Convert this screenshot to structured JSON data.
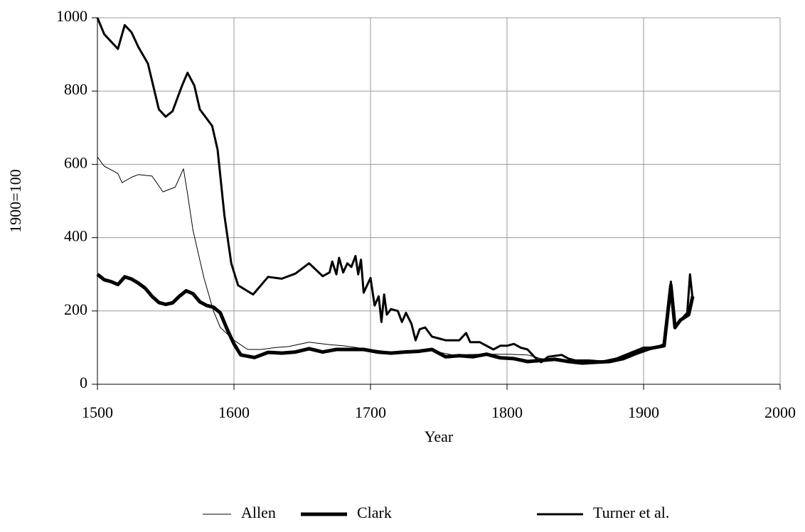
{
  "chart_data": {
    "type": "line",
    "x_label": "Year",
    "y_label": "1900=100",
    "xlim": [
      1500,
      2000
    ],
    "xticks": [
      1500,
      1600,
      1700,
      1800,
      1900,
      2000
    ],
    "ylim": [
      0,
      1000
    ],
    "yticks": [
      0,
      200,
      400,
      600,
      800,
      1000
    ],
    "grid": true,
    "legend": "bottom",
    "series": [
      {
        "name": "Allen",
        "color": "#000000",
        "width": 1,
        "x": [
          1500,
          1505,
          1510,
          1515,
          1518,
          1525,
          1530,
          1540,
          1548,
          1557,
          1563,
          1566,
          1570,
          1578,
          1585,
          1590,
          1600,
          1610,
          1620,
          1630,
          1640,
          1655,
          1670,
          1680,
          1690,
          1700,
          1720,
          1740,
          1760,
          1780,
          1800,
          1815,
          1825,
          1840,
          1855,
          1870,
          1885,
          1900,
          1915,
          1920,
          1923,
          1930,
          1936
        ],
        "values": [
          620,
          595,
          585,
          575,
          550,
          565,
          572,
          568,
          525,
          538,
          588,
          520,
          420,
          290,
          200,
          155,
          120,
          95,
          95,
          100,
          103,
          115,
          108,
          105,
          100,
          95,
          85,
          95,
          80,
          82,
          82,
          80,
          70,
          65,
          60,
          62,
          72,
          100,
          105,
          240,
          150,
          185,
          225
        ]
      },
      {
        "name": "Clark",
        "color": "#000000",
        "width": 5,
        "x": [
          1500,
          1505,
          1510,
          1515,
          1520,
          1525,
          1530,
          1535,
          1540,
          1545,
          1550,
          1555,
          1560,
          1565,
          1570,
          1575,
          1580,
          1585,
          1590,
          1595,
          1600,
          1605,
          1615,
          1625,
          1635,
          1645,
          1655,
          1665,
          1675,
          1685,
          1695,
          1705,
          1715,
          1725,
          1735,
          1745,
          1755,
          1765,
          1775,
          1785,
          1795,
          1805,
          1815,
          1825,
          1835,
          1845,
          1855,
          1865,
          1875,
          1885,
          1895,
          1905,
          1915,
          1920,
          1923,
          1927,
          1933,
          1936
        ],
        "values": [
          300,
          285,
          280,
          272,
          293,
          287,
          276,
          262,
          240,
          223,
          218,
          222,
          240,
          255,
          247,
          225,
          215,
          210,
          195,
          150,
          110,
          80,
          73,
          87,
          85,
          88,
          97,
          88,
          95,
          95,
          95,
          88,
          85,
          88,
          90,
          95,
          75,
          78,
          75,
          82,
          72,
          70,
          62,
          65,
          68,
          62,
          58,
          60,
          62,
          70,
          85,
          98,
          105,
          270,
          155,
          175,
          190,
          240
        ]
      },
      {
        "name": "Turner et al.",
        "color": "#000000",
        "width": 3,
        "x": [
          1500,
          1505,
          1515,
          1520,
          1525,
          1530,
          1537,
          1545,
          1550,
          1555,
          1562,
          1566,
          1571,
          1575,
          1584,
          1588,
          1593,
          1598,
          1603,
          1614,
          1625,
          1635,
          1645,
          1655,
          1665,
          1670,
          1672,
          1675,
          1677,
          1680,
          1683,
          1686,
          1689,
          1691,
          1693,
          1695,
          1700,
          1703,
          1706,
          1708,
          1710,
          1712,
          1715,
          1720,
          1723,
          1726,
          1730,
          1733,
          1736,
          1740,
          1745,
          1750,
          1755,
          1765,
          1770,
          1773,
          1780,
          1790,
          1795,
          1800,
          1805,
          1810,
          1815,
          1820,
          1825,
          1830,
          1840,
          1845,
          1850,
          1860,
          1870,
          1880,
          1890,
          1900,
          1910,
          1915,
          1920,
          1923,
          1927,
          1932,
          1934,
          1936
        ],
        "values": [
          1000,
          955,
          915,
          980,
          960,
          920,
          875,
          750,
          730,
          745,
          815,
          850,
          815,
          750,
          705,
          640,
          460,
          330,
          270,
          245,
          293,
          288,
          302,
          330,
          295,
          305,
          335,
          300,
          345,
          305,
          330,
          320,
          350,
          300,
          340,
          250,
          290,
          215,
          240,
          170,
          245,
          190,
          205,
          200,
          170,
          195,
          165,
          120,
          150,
          155,
          130,
          125,
          120,
          120,
          140,
          115,
          115,
          95,
          105,
          105,
          110,
          100,
          95,
          75,
          60,
          75,
          80,
          70,
          65,
          65,
          62,
          70,
          85,
          100,
          100,
          110,
          280,
          155,
          175,
          195,
          300,
          230
        ]
      }
    ]
  }
}
